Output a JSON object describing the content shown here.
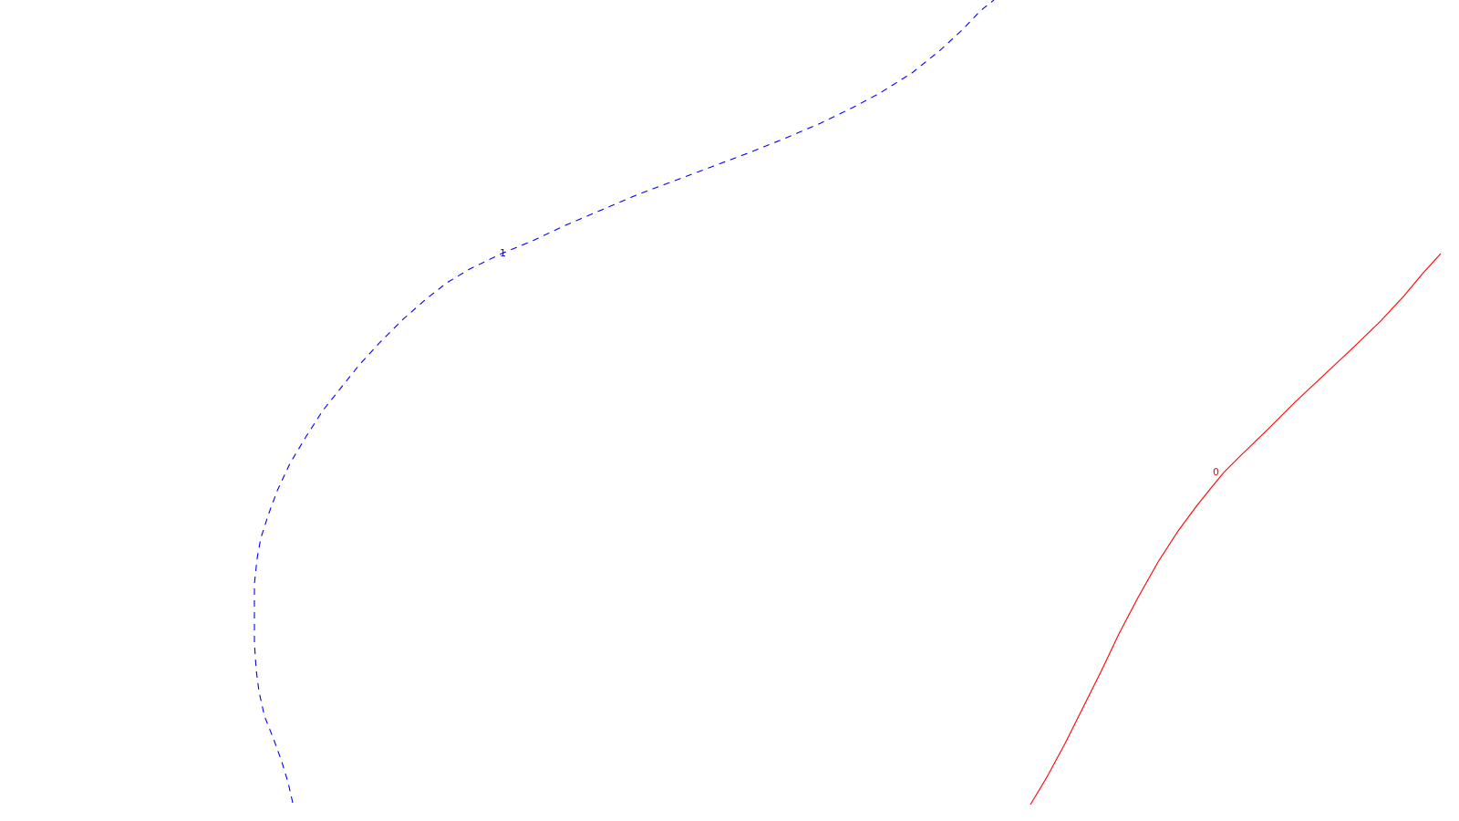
{
  "contours": [
    {
      "label": "1",
      "color": "#0000ff",
      "style": "dashed"
    },
    {
      "label": "0",
      "color": "#ff0000",
      "style": "solid"
    }
  ]
}
